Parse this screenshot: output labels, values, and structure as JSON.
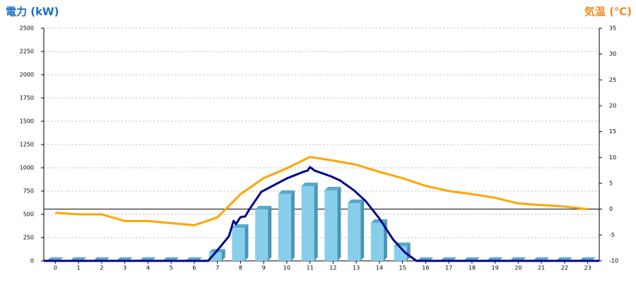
{
  "chart_data": {
    "type": "bar-line",
    "y_title": "電力 (kW)",
    "y2_title": "気温 (℃)",
    "categories": [
      "0",
      "1",
      "2",
      "3",
      "4",
      "5",
      "6",
      "7",
      "8",
      "9",
      "10",
      "11",
      "12",
      "13",
      "14",
      "15",
      "16",
      "17",
      "18",
      "19",
      "20",
      "21",
      "22",
      "23"
    ],
    "series": [
      {
        "type": "bar",
        "color": "#87ceeb",
        "values": [
          0,
          0,
          0,
          0,
          0,
          0,
          0,
          90,
          355,
          553,
          720,
          803,
          758,
          621,
          409,
          159,
          0,
          0,
          0,
          0,
          0,
          0,
          0,
          0
        ]
      },
      {
        "type": "line",
        "color": "#00008b",
        "x": [
          -0.5,
          6.6,
          7.0,
          7.5,
          7.7,
          7.8,
          8.0,
          8.2,
          8.4,
          8.9,
          10.0,
          10.7,
          10.9,
          11.0,
          11.2,
          11.9,
          12.3,
          12.9,
          13.4,
          14.0,
          14.6,
          15.1,
          15.6,
          23.5
        ],
        "values": [
          0,
          0,
          113,
          265,
          430,
          395,
          470,
          477,
          560,
          742,
          886,
          955,
          970,
          1008,
          970,
          909,
          864,
          758,
          644,
          455,
          227,
          91,
          0,
          0
        ]
      },
      {
        "type": "line",
        "color": "#ffa500",
        "axis": "y2",
        "values": [
          -0.7,
          -1,
          -1,
          -2.3,
          -2.3,
          -2.7,
          -3.1,
          -1.6,
          2.9,
          6.0,
          7.9,
          10.1,
          9.4,
          8.6,
          7.2,
          6.0,
          4.5,
          3.5,
          2.9,
          2.2,
          1.1,
          0.8,
          0.5,
          0
        ]
      }
    ],
    "ylim": [
      0,
      2500
    ],
    "yticks": [
      0,
      250,
      500,
      750,
      1000,
      1250,
      1500,
      1750,
      2000,
      2250,
      2500
    ],
    "y2lim": [
      -10,
      35
    ],
    "y2ticks": [
      -10,
      -5,
      0,
      5,
      10,
      15,
      20,
      25,
      30,
      35
    ],
    "grid": true
  }
}
